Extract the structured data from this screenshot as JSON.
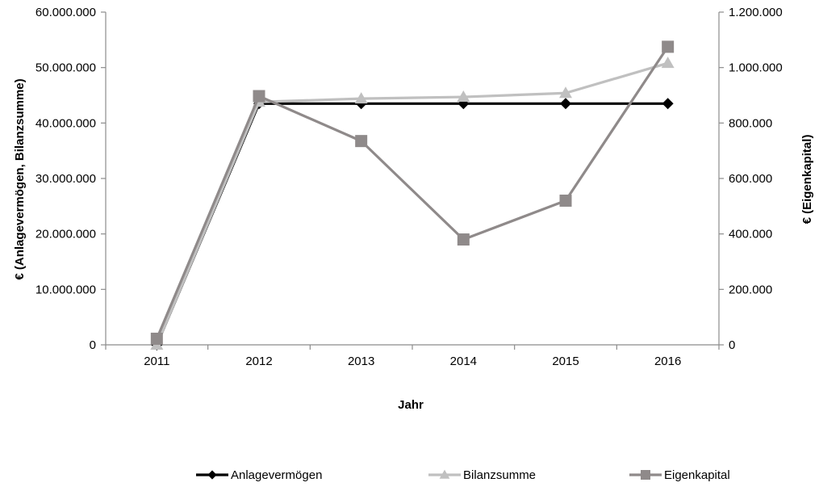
{
  "chart_data": {
    "type": "line",
    "title": "",
    "xlabel": "Jahr",
    "ylabel_left": "€ (Anlagevermögen, Bilanzsumme)",
    "ylabel_right": "€ (Eigenkapital)",
    "categories": [
      "2011",
      "2012",
      "2013",
      "2014",
      "2015",
      "2016"
    ],
    "ylim_left": [
      0,
      60000000
    ],
    "ylim_right": [
      0,
      1200000
    ],
    "yticks_left": [
      {
        "value": 0,
        "label": "0"
      },
      {
        "value": 10000000,
        "label": "10.000.000"
      },
      {
        "value": 20000000,
        "label": "20.000.000"
      },
      {
        "value": 30000000,
        "label": "30.000.000"
      },
      {
        "value": 40000000,
        "label": "40.000.000"
      },
      {
        "value": 50000000,
        "label": "50.000.000"
      },
      {
        "value": 60000000,
        "label": "60.000.000"
      }
    ],
    "yticks_right": [
      {
        "value": 0,
        "label": "0"
      },
      {
        "value": 200000,
        "label": "200.000"
      },
      {
        "value": 400000,
        "label": "400.000"
      },
      {
        "value": 600000,
        "label": "600.000"
      },
      {
        "value": 800000,
        "label": "800.000"
      },
      {
        "value": 1000000,
        "label": "1.000.000"
      },
      {
        "value": 1200000,
        "label": "1.200.000"
      }
    ],
    "grid": false,
    "legend_position": "bottom",
    "series": [
      {
        "name": "Anlagevermögen",
        "axis": "left",
        "marker": "diamond",
        "color": "#000000",
        "values": [
          0,
          43500000,
          43500000,
          43500000,
          43500000,
          43500000
        ]
      },
      {
        "name": "Bilanzsumme",
        "axis": "left",
        "marker": "triangle",
        "color": "#c0c0c0",
        "values": [
          0,
          43800000,
          44400000,
          44700000,
          45400000,
          50800000
        ]
      },
      {
        "name": "Eigenkapital",
        "axis": "right",
        "marker": "square",
        "color": "#8f8a8a",
        "values": [
          22000,
          897000,
          735000,
          380000,
          520000,
          1075000
        ]
      }
    ]
  }
}
